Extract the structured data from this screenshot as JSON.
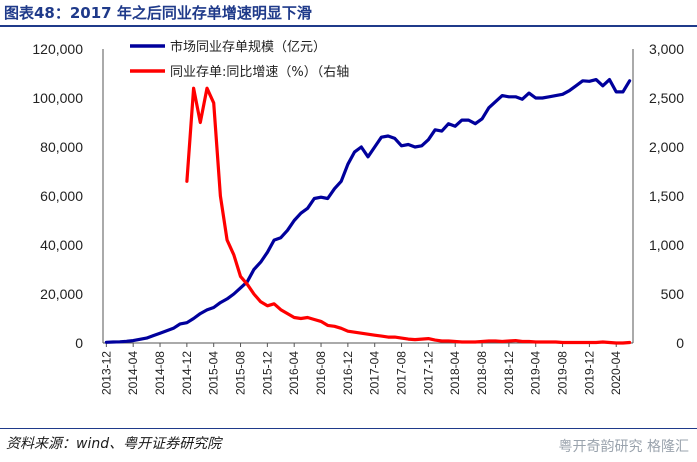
{
  "header": {
    "title": "图表48：2017 年之后同业存单增速明显下滑"
  },
  "footer": {
    "source": "资料来源：wind、粤开证券研究院",
    "watermark": "粤开奇韵研究 格隆汇"
  },
  "chart_data": {
    "type": "line",
    "x": [
      "2013-12",
      "2014-01",
      "2014-02",
      "2014-03",
      "2014-04",
      "2014-05",
      "2014-06",
      "2014-07",
      "2014-08",
      "2014-09",
      "2014-10",
      "2014-11",
      "2014-12",
      "2015-01",
      "2015-02",
      "2015-03",
      "2015-04",
      "2015-05",
      "2015-06",
      "2015-07",
      "2015-08",
      "2015-09",
      "2015-10",
      "2015-11",
      "2015-12",
      "2016-01",
      "2016-02",
      "2016-03",
      "2016-04",
      "2016-05",
      "2016-06",
      "2016-07",
      "2016-08",
      "2016-09",
      "2016-10",
      "2016-11",
      "2016-12",
      "2017-01",
      "2017-02",
      "2017-03",
      "2017-04",
      "2017-05",
      "2017-06",
      "2017-07",
      "2017-08",
      "2017-09",
      "2017-10",
      "2017-11",
      "2017-12",
      "2018-01",
      "2018-02",
      "2018-03",
      "2018-04",
      "2018-05",
      "2018-06",
      "2018-07",
      "2018-08",
      "2018-09",
      "2018-10",
      "2018-11",
      "2018-12",
      "2019-01",
      "2019-02",
      "2019-03",
      "2019-04",
      "2019-05",
      "2019-06",
      "2019-07",
      "2019-08",
      "2019-09",
      "2019-10",
      "2019-11",
      "2019-12",
      "2020-01",
      "2020-02",
      "2020-03",
      "2020-04",
      "2020-05",
      "2020-06"
    ],
    "x_tick_labels": [
      "2013-12",
      "2014-04",
      "2014-08",
      "2014-12",
      "2015-04",
      "2015-08",
      "2015-12",
      "2016-04",
      "2016-08",
      "2016-12",
      "2017-04",
      "2017-08",
      "2017-12",
      "2018-04",
      "2018-08",
      "2018-12",
      "2019-04",
      "2019-08",
      "2019-12",
      "2020-04"
    ],
    "series": [
      {
        "name": "市场同业存单规模（亿元）",
        "axis": "left",
        "color": "#00009c",
        "values": [
          300,
          400,
          500,
          700,
          1000,
          1500,
          2000,
          3000,
          4000,
          5000,
          6000,
          7800,
          8300,
          10000,
          12000,
          13500,
          14500,
          16500,
          18000,
          20000,
          22500,
          25000,
          30000,
          33000,
          37000,
          42000,
          43000,
          46000,
          50000,
          53000,
          55000,
          59000,
          59500,
          59000,
          63000,
          66000,
          73000,
          78000,
          80000,
          76000,
          80000,
          84000,
          84500,
          83500,
          80500,
          81000,
          80000,
          80500,
          83000,
          87000,
          86500,
          89500,
          88500,
          91000,
          91000,
          89500,
          91500,
          96000,
          98500,
          101000,
          100500,
          100500,
          99500,
          102000,
          100000,
          100000,
          100500,
          101000,
          101500,
          103000,
          105000,
          107000,
          106800,
          107500,
          105000,
          107500,
          102500,
          102500,
          107000
        ]
      },
      {
        "name": "同业存单:同比增速（%）（右轴",
        "axis": "right",
        "color": "#ff0000",
        "values": [
          null,
          null,
          null,
          null,
          null,
          null,
          null,
          null,
          null,
          null,
          null,
          null,
          1650,
          2600,
          2250,
          2600,
          2450,
          1500,
          1050,
          900,
          680,
          600,
          500,
          420,
          380,
          400,
          340,
          300,
          260,
          250,
          260,
          240,
          220,
          180,
          170,
          150,
          120,
          110,
          100,
          90,
          80,
          70,
          60,
          60,
          50,
          40,
          35,
          40,
          45,
          30,
          20,
          20,
          15,
          10,
          10,
          10,
          15,
          20,
          20,
          15,
          20,
          25,
          15,
          15,
          10,
          10,
          10,
          10,
          5,
          5,
          5,
          5,
          5,
          5,
          10,
          5,
          0,
          0,
          5
        ]
      }
    ],
    "left_axis": {
      "min": 0,
      "max": 120000,
      "step": 20000,
      "tick_labels": [
        "0",
        "20,000",
        "40,000",
        "60,000",
        "80,000",
        "100,000",
        "120,000"
      ]
    },
    "right_axis": {
      "min": 0,
      "max": 3000,
      "step": 500,
      "tick_labels": [
        "0",
        "500",
        "1,000",
        "1,500",
        "2,000",
        "2,500",
        "3,000"
      ]
    },
    "grid": false,
    "legend_position": "top-left"
  }
}
